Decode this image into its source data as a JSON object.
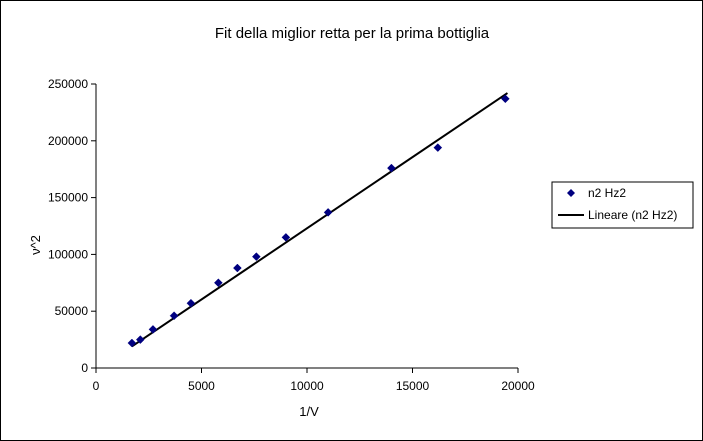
{
  "chart_data": {
    "type": "scatter",
    "title": "Fit della miglior retta per la prima bottiglia",
    "xlabel": "1/V",
    "ylabel": "ν^2",
    "xlim": [
      0,
      20000
    ],
    "ylim": [
      0,
      250000
    ],
    "x_ticks": [
      0,
      5000,
      10000,
      15000,
      20000
    ],
    "y_ticks": [
      0,
      50000,
      100000,
      150000,
      200000,
      250000
    ],
    "grid": false,
    "legend_position": "right",
    "series": [
      {
        "name": "n2 Hz2",
        "kind": "scatter",
        "marker": "diamond",
        "color": "#000080",
        "x": [
          1700,
          2100,
          2700,
          3700,
          4500,
          5800,
          6700,
          7600,
          9000,
          11000,
          14000,
          16200,
          19400
        ],
        "y": [
          22000,
          25000,
          34000,
          46000,
          57000,
          75000,
          88000,
          98000,
          115000,
          137000,
          176000,
          194000,
          237000
        ]
      },
      {
        "name": "Lineare (n2 Hz2)",
        "kind": "line",
        "color": "#000000",
        "x": [
          1700,
          19500
        ],
        "y": [
          19000,
          242000
        ]
      }
    ]
  }
}
